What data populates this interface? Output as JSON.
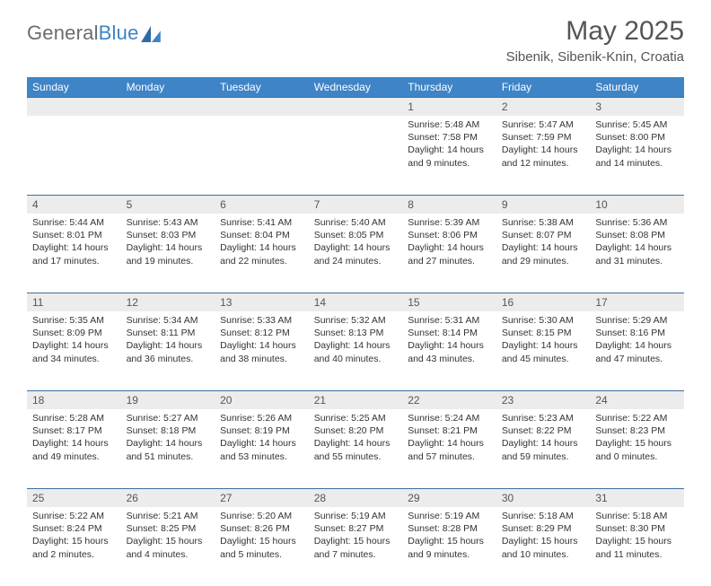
{
  "brand": {
    "general": "General",
    "blue": "Blue"
  },
  "header": {
    "month_title": "May 2025",
    "location": "Sibenik, Sibenik-Knin, Croatia"
  },
  "style": {
    "header_bg": "#3e84c6",
    "header_text": "#ffffff",
    "daynum_bg": "#ececec",
    "daynum_border": "#3e6fa0",
    "text_color": "#333333",
    "title_color": "#555555"
  },
  "day_headers": [
    "Sunday",
    "Monday",
    "Tuesday",
    "Wednesday",
    "Thursday",
    "Friday",
    "Saturday"
  ],
  "weeks": [
    {
      "days": [
        null,
        null,
        null,
        null,
        {
          "num": "1",
          "sunrise": "Sunrise: 5:48 AM",
          "sunset": "Sunset: 7:58 PM",
          "daylight": "Daylight: 14 hours and 9 minutes."
        },
        {
          "num": "2",
          "sunrise": "Sunrise: 5:47 AM",
          "sunset": "Sunset: 7:59 PM",
          "daylight": "Daylight: 14 hours and 12 minutes."
        },
        {
          "num": "3",
          "sunrise": "Sunrise: 5:45 AM",
          "sunset": "Sunset: 8:00 PM",
          "daylight": "Daylight: 14 hours and 14 minutes."
        }
      ]
    },
    {
      "days": [
        {
          "num": "4",
          "sunrise": "Sunrise: 5:44 AM",
          "sunset": "Sunset: 8:01 PM",
          "daylight": "Daylight: 14 hours and 17 minutes."
        },
        {
          "num": "5",
          "sunrise": "Sunrise: 5:43 AM",
          "sunset": "Sunset: 8:03 PM",
          "daylight": "Daylight: 14 hours and 19 minutes."
        },
        {
          "num": "6",
          "sunrise": "Sunrise: 5:41 AM",
          "sunset": "Sunset: 8:04 PM",
          "daylight": "Daylight: 14 hours and 22 minutes."
        },
        {
          "num": "7",
          "sunrise": "Sunrise: 5:40 AM",
          "sunset": "Sunset: 8:05 PM",
          "daylight": "Daylight: 14 hours and 24 minutes."
        },
        {
          "num": "8",
          "sunrise": "Sunrise: 5:39 AM",
          "sunset": "Sunset: 8:06 PM",
          "daylight": "Daylight: 14 hours and 27 minutes."
        },
        {
          "num": "9",
          "sunrise": "Sunrise: 5:38 AM",
          "sunset": "Sunset: 8:07 PM",
          "daylight": "Daylight: 14 hours and 29 minutes."
        },
        {
          "num": "10",
          "sunrise": "Sunrise: 5:36 AM",
          "sunset": "Sunset: 8:08 PM",
          "daylight": "Daylight: 14 hours and 31 minutes."
        }
      ]
    },
    {
      "days": [
        {
          "num": "11",
          "sunrise": "Sunrise: 5:35 AM",
          "sunset": "Sunset: 8:09 PM",
          "daylight": "Daylight: 14 hours and 34 minutes."
        },
        {
          "num": "12",
          "sunrise": "Sunrise: 5:34 AM",
          "sunset": "Sunset: 8:11 PM",
          "daylight": "Daylight: 14 hours and 36 minutes."
        },
        {
          "num": "13",
          "sunrise": "Sunrise: 5:33 AM",
          "sunset": "Sunset: 8:12 PM",
          "daylight": "Daylight: 14 hours and 38 minutes."
        },
        {
          "num": "14",
          "sunrise": "Sunrise: 5:32 AM",
          "sunset": "Sunset: 8:13 PM",
          "daylight": "Daylight: 14 hours and 40 minutes."
        },
        {
          "num": "15",
          "sunrise": "Sunrise: 5:31 AM",
          "sunset": "Sunset: 8:14 PM",
          "daylight": "Daylight: 14 hours and 43 minutes."
        },
        {
          "num": "16",
          "sunrise": "Sunrise: 5:30 AM",
          "sunset": "Sunset: 8:15 PM",
          "daylight": "Daylight: 14 hours and 45 minutes."
        },
        {
          "num": "17",
          "sunrise": "Sunrise: 5:29 AM",
          "sunset": "Sunset: 8:16 PM",
          "daylight": "Daylight: 14 hours and 47 minutes."
        }
      ]
    },
    {
      "days": [
        {
          "num": "18",
          "sunrise": "Sunrise: 5:28 AM",
          "sunset": "Sunset: 8:17 PM",
          "daylight": "Daylight: 14 hours and 49 minutes."
        },
        {
          "num": "19",
          "sunrise": "Sunrise: 5:27 AM",
          "sunset": "Sunset: 8:18 PM",
          "daylight": "Daylight: 14 hours and 51 minutes."
        },
        {
          "num": "20",
          "sunrise": "Sunrise: 5:26 AM",
          "sunset": "Sunset: 8:19 PM",
          "daylight": "Daylight: 14 hours and 53 minutes."
        },
        {
          "num": "21",
          "sunrise": "Sunrise: 5:25 AM",
          "sunset": "Sunset: 8:20 PM",
          "daylight": "Daylight: 14 hours and 55 minutes."
        },
        {
          "num": "22",
          "sunrise": "Sunrise: 5:24 AM",
          "sunset": "Sunset: 8:21 PM",
          "daylight": "Daylight: 14 hours and 57 minutes."
        },
        {
          "num": "23",
          "sunrise": "Sunrise: 5:23 AM",
          "sunset": "Sunset: 8:22 PM",
          "daylight": "Daylight: 14 hours and 59 minutes."
        },
        {
          "num": "24",
          "sunrise": "Sunrise: 5:22 AM",
          "sunset": "Sunset: 8:23 PM",
          "daylight": "Daylight: 15 hours and 0 minutes."
        }
      ]
    },
    {
      "days": [
        {
          "num": "25",
          "sunrise": "Sunrise: 5:22 AM",
          "sunset": "Sunset: 8:24 PM",
          "daylight": "Daylight: 15 hours and 2 minutes."
        },
        {
          "num": "26",
          "sunrise": "Sunrise: 5:21 AM",
          "sunset": "Sunset: 8:25 PM",
          "daylight": "Daylight: 15 hours and 4 minutes."
        },
        {
          "num": "27",
          "sunrise": "Sunrise: 5:20 AM",
          "sunset": "Sunset: 8:26 PM",
          "daylight": "Daylight: 15 hours and 5 minutes."
        },
        {
          "num": "28",
          "sunrise": "Sunrise: 5:19 AM",
          "sunset": "Sunset: 8:27 PM",
          "daylight": "Daylight: 15 hours and 7 minutes."
        },
        {
          "num": "29",
          "sunrise": "Sunrise: 5:19 AM",
          "sunset": "Sunset: 8:28 PM",
          "daylight": "Daylight: 15 hours and 9 minutes."
        },
        {
          "num": "30",
          "sunrise": "Sunrise: 5:18 AM",
          "sunset": "Sunset: 8:29 PM",
          "daylight": "Daylight: 15 hours and 10 minutes."
        },
        {
          "num": "31",
          "sunrise": "Sunrise: 5:18 AM",
          "sunset": "Sunset: 8:30 PM",
          "daylight": "Daylight: 15 hours and 11 minutes."
        }
      ]
    }
  ]
}
